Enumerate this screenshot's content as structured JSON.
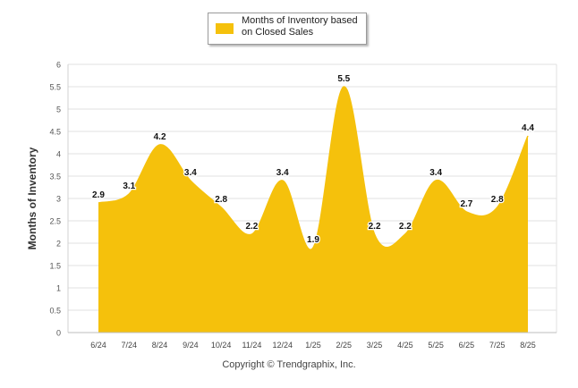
{
  "chart_data": {
    "type": "area",
    "categories": [
      "6/24",
      "7/24",
      "8/24",
      "9/24",
      "10/24",
      "11/24",
      "12/24",
      "1/25",
      "2/25",
      "3/25",
      "4/25",
      "5/25",
      "6/25",
      "7/25",
      "8/25"
    ],
    "series": [
      {
        "name": "Months of Inventory based on Closed Sales",
        "values": [
          2.9,
          3.1,
          4.2,
          3.4,
          2.8,
          2.2,
          3.4,
          1.9,
          5.5,
          2.2,
          2.2,
          3.4,
          2.7,
          2.8,
          4.4
        ],
        "color": "#F5C10C"
      }
    ],
    "ylabel": "Months of Inventory",
    "xlabel": "",
    "ylim": [
      0,
      6
    ],
    "yticks": [
      "0",
      "0.5",
      "1",
      "1.5",
      "2",
      "2.5",
      "3",
      "3.5",
      "4",
      "4.5",
      "5",
      "5.5",
      "6"
    ],
    "grid": true,
    "legend": "top-center",
    "data_labels": true
  },
  "legend": {
    "label": "Months of Inventory based on Closed Sales",
    "color": "#F5C10C"
  },
  "footer": {
    "copyright": "Copyright © Trendgraphix, Inc."
  }
}
